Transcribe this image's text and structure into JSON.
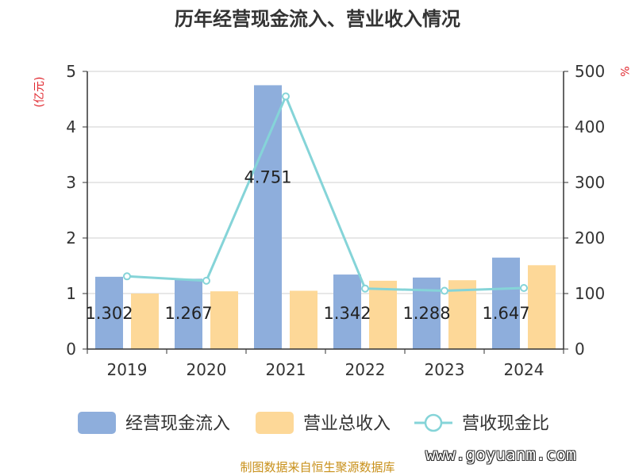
{
  "chart_data": {
    "type": "bar",
    "title": "历年经营现金流入、营业收入情况",
    "ylabel_left": "(亿元)",
    "ylabel_right": "%",
    "categories": [
      "2019",
      "2020",
      "2021",
      "2022",
      "2023",
      "2024"
    ],
    "ylim_left": [
      0,
      5
    ],
    "ylim_right": [
      0,
      500
    ],
    "yticks_left": [
      "0",
      "1",
      "2",
      "3",
      "4",
      "5"
    ],
    "yticks_right": [
      "0",
      "100",
      "200",
      "300",
      "400",
      "500"
    ],
    "grid": true,
    "legend_position": "bottom",
    "series": [
      {
        "name": "经营现金流入",
        "type": "bar",
        "axis": "left",
        "color": "#8eaedc",
        "values": [
          1.302,
          1.267,
          4.751,
          1.342,
          1.288,
          1.647
        ],
        "labels": [
          "1.302",
          "1.267",
          "4.751",
          "1.342",
          "1.288",
          "1.647"
        ]
      },
      {
        "name": "营业总收入",
        "type": "bar",
        "axis": "left",
        "color": "#fdd898",
        "values": [
          1.0,
          1.04,
          1.05,
          1.23,
          1.24,
          1.51
        ]
      },
      {
        "name": "营收现金比",
        "type": "line",
        "axis": "right",
        "color": "#85d4d8",
        "values": [
          131,
          123,
          455,
          109,
          105,
          110
        ]
      }
    ]
  },
  "source_note": "制图数据来自恒生聚源数据库",
  "watermark": "www.goyuanm.com"
}
